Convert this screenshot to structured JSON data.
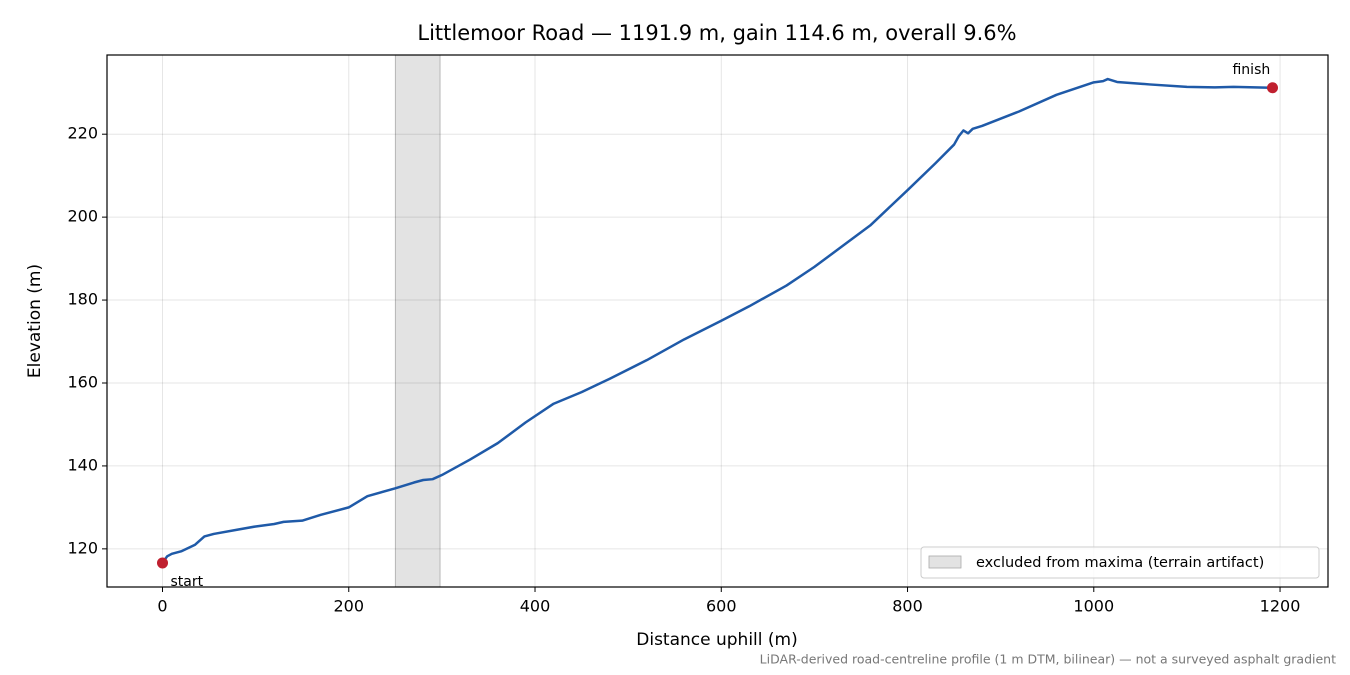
{
  "chart_data": {
    "type": "line",
    "title": "Littlemoor Road — 1191.9 m, gain 114.6 m, overall 9.6%",
    "xlabel": "Distance uphill (m)",
    "ylabel": "Elevation (m)",
    "footnote": "LiDAR-derived road-centreline profile (1 m DTM, bilinear) — not a surveyed asphalt gradient",
    "x": [
      0,
      5,
      10,
      20,
      35,
      45,
      55,
      80,
      100,
      120,
      130,
      150,
      170,
      200,
      220,
      250,
      270,
      280,
      290,
      300,
      330,
      360,
      390,
      420,
      450,
      480,
      520,
      560,
      600,
      630,
      670,
      700,
      730,
      760,
      800,
      830,
      850,
      855,
      860,
      865,
      870,
      880,
      920,
      960,
      1000,
      1010,
      1015,
      1025,
      1060,
      1100,
      1130,
      1150,
      1191.9
    ],
    "series": [
      {
        "name": "elevation",
        "color": "#1f5aa8",
        "values": [
          116.6,
          118.2,
          118.8,
          119.4,
          121,
          123,
          123.6,
          124.6,
          125.4,
          126,
          126.5,
          126.8,
          128.2,
          130,
          132.7,
          134.6,
          136,
          136.6,
          136.8,
          137.8,
          141.5,
          145.5,
          150.5,
          155,
          157.8,
          161,
          165.5,
          170.5,
          175,
          178.5,
          183.5,
          188,
          193,
          198,
          206.5,
          213,
          217.5,
          219.5,
          220.9,
          220.2,
          221.3,
          222,
          225.5,
          229.5,
          232.5,
          232.8,
          233.3,
          232.6,
          232,
          231.4,
          231.3,
          231.4,
          231.2
        ]
      }
    ],
    "markers": [
      {
        "label": "start",
        "x": 0,
        "y": 116.6,
        "color": "#c0202f"
      },
      {
        "label": "finish",
        "x": 1191.9,
        "y": 231.2,
        "color": "#c0202f"
      }
    ],
    "excluded": {
      "label": "excluded from maxima (terrain artifact)",
      "xrange": [
        250,
        298
      ],
      "color": "#d9d9d9"
    },
    "xlim": [
      -59.6,
      1251.5
    ],
    "ylim": [
      110.8,
      239.1
    ],
    "xticks": [
      0,
      200,
      400,
      600,
      800,
      1000,
      1200
    ],
    "yticks": [
      120,
      140,
      160,
      180,
      200,
      220
    ],
    "grid": true,
    "legend": "lower right"
  }
}
